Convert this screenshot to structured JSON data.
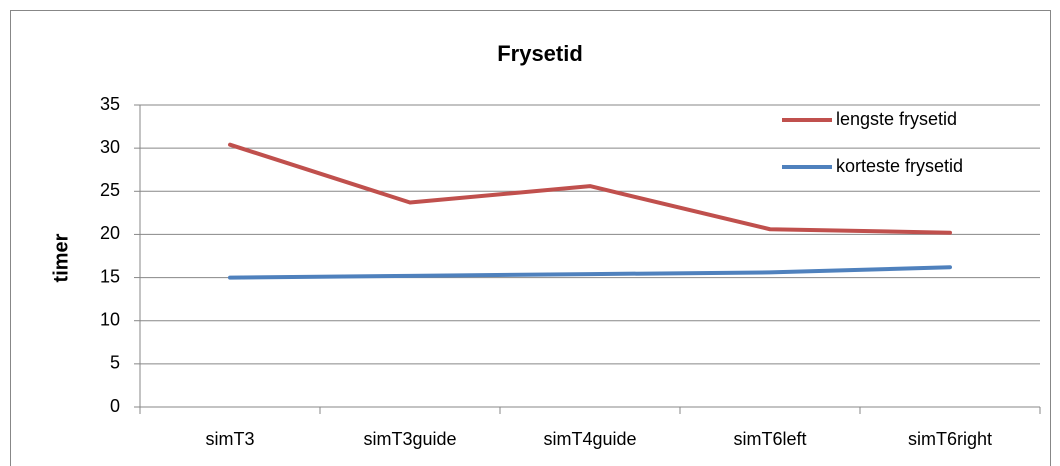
{
  "chart_data": {
    "type": "line",
    "title": "Frysetid",
    "y_label": "timer",
    "categories": [
      "simT3",
      "simT3guide",
      "simT4guide",
      "simT6left",
      "simT6right"
    ],
    "series": [
      {
        "name": "lengste frysetid",
        "color": "#c0504d",
        "values": [
          30.4,
          23.7,
          25.6,
          20.6,
          20.2
        ]
      },
      {
        "name": "korteste frysetid",
        "color": "#4f81bd",
        "values": [
          15.0,
          15.2,
          15.4,
          15.6,
          16.2
        ]
      }
    ],
    "ylim": [
      0,
      35
    ],
    "yticks": [
      0,
      5,
      10,
      15,
      20,
      25,
      30,
      35
    ],
    "grid": true,
    "legend": "top-right"
  }
}
